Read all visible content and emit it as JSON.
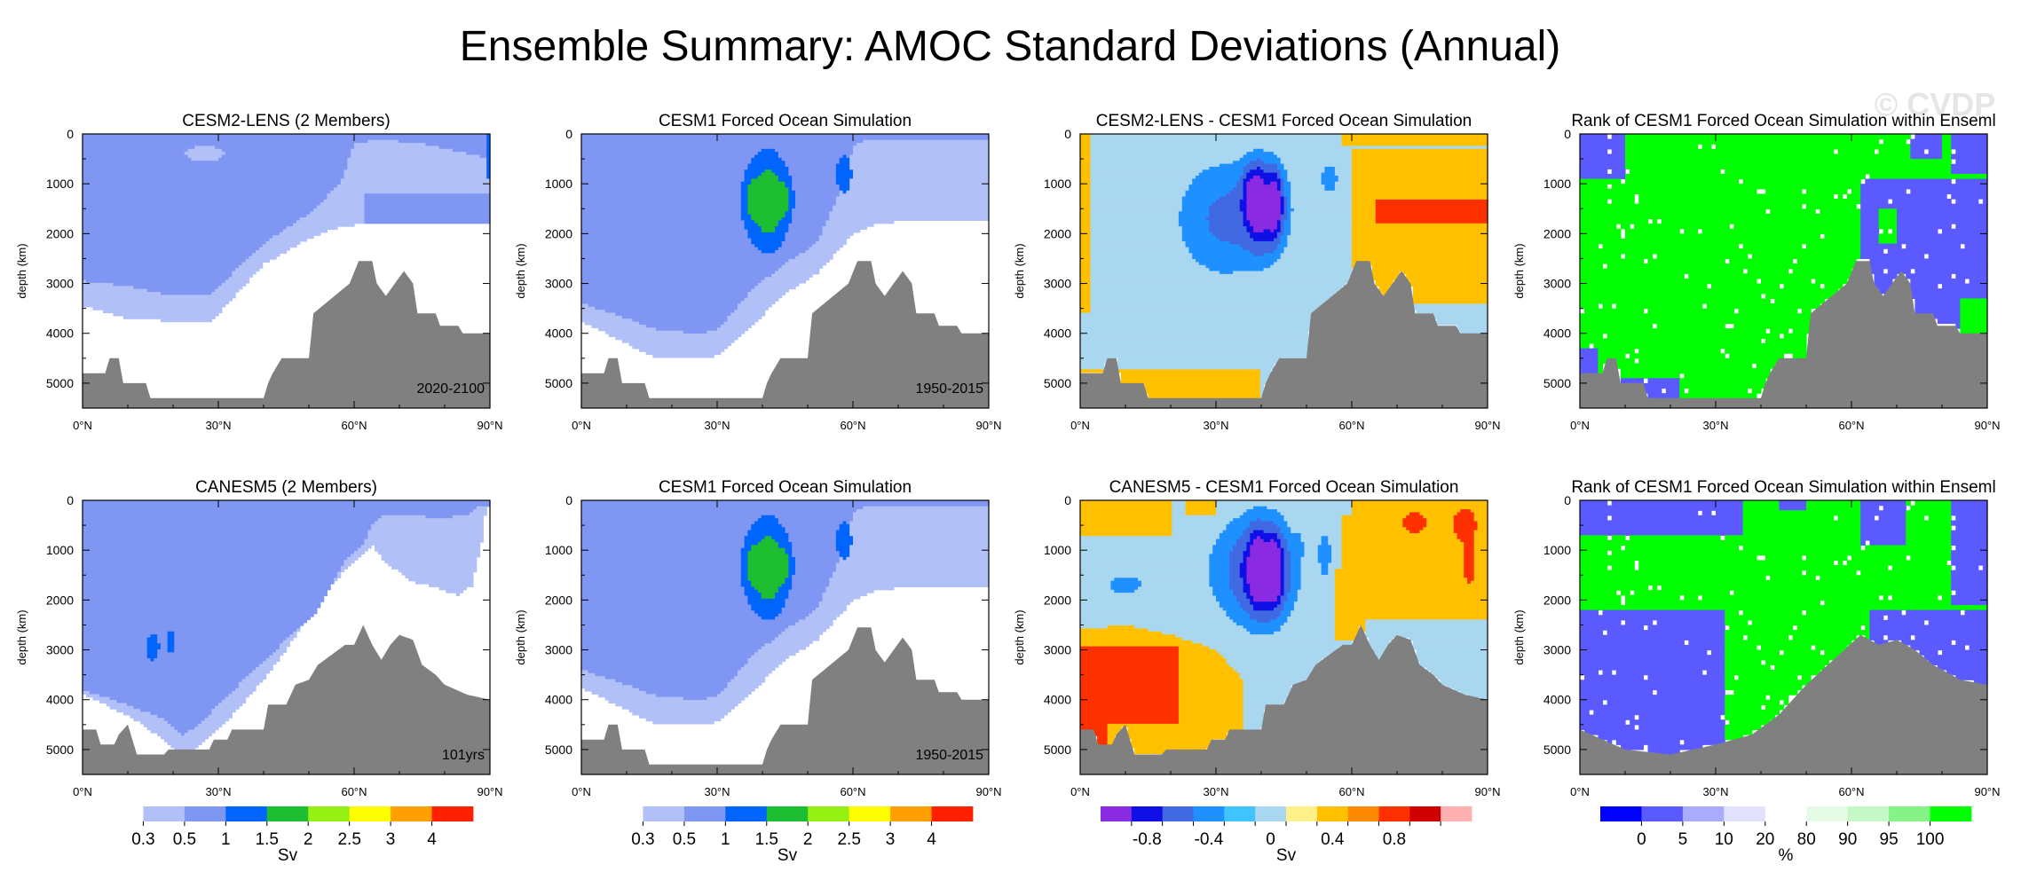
{
  "title": "Ensemble Summary: AMOC Standard Deviations (Annual)",
  "watermark": "© CVDP",
  "colors": {
    "ocean_floor": "#808080",
    "sd_scale": [
      "#ffffff",
      "#b1c0f7",
      "#7f96f3",
      "#0064ff",
      "#1ebe32",
      "#96f014",
      "#ffff00",
      "#ffa000",
      "#ff2000"
    ],
    "diff_scale": [
      "#8a2be2",
      "#0f0fe6",
      "#4169e1",
      "#1e90ff",
      "#3fc4ff",
      "#aad7f0",
      "#fff08c",
      "#ffc000",
      "#ff8a00",
      "#ff3000",
      "#cf0000",
      "#ffb0b0"
    ],
    "rank_scale": [
      "#0000ff",
      "#5a5aff",
      "#aaaaff",
      "#e2e2ff",
      "#ffffff",
      "#e5fbe5",
      "#c6f7c6",
      "#86f386",
      "#00ff00"
    ]
  },
  "chart_data": [
    {
      "type": "heatmap",
      "title": "CESM2-LENS (2 Members)",
      "field": "sd",
      "member": "cesm2",
      "period": "2020-2100",
      "ylabel": "depth (km)",
      "ylim": [
        0,
        5500
      ],
      "yticks": [
        "0",
        "1000",
        "2000",
        "3000",
        "4000",
        "5000"
      ],
      "xticks": [
        "0°N",
        "30°N",
        "60°N",
        "90°N"
      ],
      "xlim": [
        0,
        90
      ]
    },
    {
      "type": "heatmap",
      "title": "CESM1 Forced Ocean Simulation",
      "field": "sd",
      "member": "cesm1",
      "period": "1950-2015",
      "ylabel": "depth (km)",
      "ylim": [
        0,
        5500
      ],
      "yticks": [
        "0",
        "1000",
        "2000",
        "3000",
        "4000",
        "5000"
      ],
      "xticks": [
        "0°N",
        "30°N",
        "60°N",
        "90°N"
      ],
      "xlim": [
        0,
        90
      ]
    },
    {
      "type": "heatmap",
      "title": "CESM2-LENS - CESM1 Forced Ocean Simulation",
      "field": "diff",
      "member": "d1",
      "period": "",
      "ylabel": "depth (km)",
      "ylim": [
        0,
        5500
      ],
      "yticks": [
        "0",
        "1000",
        "2000",
        "3000",
        "4000",
        "5000"
      ],
      "xticks": [
        "0°N",
        "30°N",
        "60°N",
        "90°N"
      ],
      "xlim": [
        0,
        90
      ]
    },
    {
      "type": "heatmap",
      "title": "Rank of CESM1 Forced Ocean Simulation within Enseml",
      "field": "rank",
      "member": "r1",
      "period": "",
      "ylabel": "depth (km)",
      "ylim": [
        0,
        5500
      ],
      "yticks": [
        "0",
        "1000",
        "2000",
        "3000",
        "4000",
        "5000"
      ],
      "xticks": [
        "0°N",
        "30°N",
        "60°N",
        "90°N"
      ],
      "xlim": [
        0,
        90
      ]
    },
    {
      "type": "heatmap",
      "title": "CANESM5 (2 Members)",
      "field": "sd",
      "member": "canesm5",
      "period": "101yrs",
      "ylabel": "depth (km)",
      "ylim": [
        0,
        5500
      ],
      "yticks": [
        "0",
        "1000",
        "2000",
        "3000",
        "4000",
        "5000"
      ],
      "xticks": [
        "0°N",
        "30°N",
        "60°N",
        "90°N"
      ],
      "xlim": [
        0,
        90
      ]
    },
    {
      "type": "heatmap",
      "title": "CESM1 Forced Ocean Simulation",
      "field": "sd",
      "member": "cesm1",
      "period": "1950-2015",
      "ylabel": "depth (km)",
      "ylim": [
        0,
        5500
      ],
      "yticks": [
        "0",
        "1000",
        "2000",
        "3000",
        "4000",
        "5000"
      ],
      "xticks": [
        "0°N",
        "30°N",
        "60°N",
        "90°N"
      ],
      "xlim": [
        0,
        90
      ]
    },
    {
      "type": "heatmap",
      "title": "CANESM5 - CESM1 Forced Ocean Simulation",
      "field": "diff",
      "member": "d2",
      "period": "",
      "ylabel": "depth (km)",
      "ylim": [
        0,
        5500
      ],
      "yticks": [
        "0",
        "1000",
        "2000",
        "3000",
        "4000",
        "5000"
      ],
      "xticks": [
        "0°N",
        "30°N",
        "60°N",
        "90°N"
      ],
      "xlim": [
        0,
        90
      ]
    },
    {
      "type": "heatmap",
      "title": "Rank of CESM1 Forced Ocean Simulation within Enseml",
      "field": "rank",
      "member": "r2",
      "period": "",
      "ylabel": "depth (km)",
      "ylim": [
        0,
        5500
      ],
      "yticks": [
        "0",
        "1000",
        "2000",
        "3000",
        "4000",
        "5000"
      ],
      "xticks": [
        "0°N",
        "30°N",
        "60°N",
        "90°N"
      ],
      "xlim": [
        0,
        90
      ]
    }
  ],
  "colorbars": [
    {
      "scale": "sd_scale",
      "labels": [
        "0.3",
        "0.5",
        "1",
        "1.5",
        "2",
        "2.5",
        "3",
        "4"
      ],
      "unit": "Sv"
    },
    {
      "scale": "sd_scale",
      "labels": [
        "0.3",
        "0.5",
        "1",
        "1.5",
        "2",
        "2.5",
        "3",
        "4"
      ],
      "unit": "Sv"
    },
    {
      "scale": "diff_scale",
      "labels": [
        "-0.8",
        "-0.4",
        "0",
        "0.4",
        "0.8"
      ],
      "unit": "Sv"
    },
    {
      "scale": "rank_scale",
      "labels": [
        "0",
        "5",
        "10",
        "20",
        "80",
        "90",
        "95",
        "100"
      ],
      "unit": "%"
    }
  ]
}
